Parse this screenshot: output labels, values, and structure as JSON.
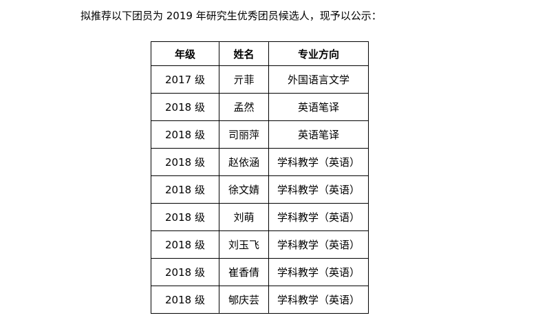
{
  "intro": "拟推荐以下团员为 2019 年研究生优秀团员候选人，现予以公示：",
  "table": {
    "headers": [
      "年级",
      "姓名",
      "专业方向"
    ],
    "rows": [
      [
        "2017 级",
        "亓菲",
        "外国语言文学"
      ],
      [
        "2018 级",
        "孟然",
        "英语笔译"
      ],
      [
        "2018 级",
        "司丽萍",
        "英语笔译"
      ],
      [
        "2018 级",
        "赵依涵",
        "学科教学（英语）"
      ],
      [
        "2018 级",
        "徐文婧",
        "学科教学（英语）"
      ],
      [
        "2018 级",
        "刘萌",
        "学科教学（英语）"
      ],
      [
        "2018 级",
        "刘玉飞",
        "学科教学（英语）"
      ],
      [
        "2018 级",
        "崔香倩",
        "学科教学（英语）"
      ],
      [
        "2018 级",
        "郇庆芸",
        "学科教学（英语）"
      ]
    ]
  }
}
